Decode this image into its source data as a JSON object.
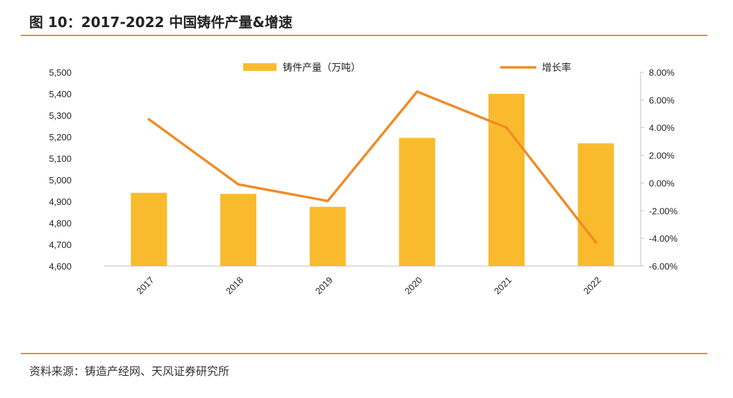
{
  "figure": {
    "title": "图 10：2017-2022 中国铸件产量&增速",
    "source": "资料来源：铸造产经网、天风证券研究所"
  },
  "colors": {
    "bar": "#f9bb2d",
    "line": "#f08a24",
    "accent_rule": "#f08a24"
  },
  "chart_data": {
    "type": "bar",
    "categories": [
      "2017",
      "2018",
      "2019",
      "2020",
      "2021",
      "2022"
    ],
    "series": [
      {
        "name": "铸件产量（万吨）",
        "type": "bar",
        "axis": "left",
        "values": [
          4940,
          4935,
          4875,
          5195,
          5400,
          5170
        ]
      },
      {
        "name": "增长率",
        "type": "line",
        "axis": "right",
        "values": [
          4.6,
          -0.1,
          -1.3,
          6.6,
          4.0,
          -4.3
        ]
      }
    ],
    "y_left": {
      "min": 4600,
      "max": 5500,
      "step": 100,
      "tick_labels": [
        "4,600",
        "4,700",
        "4,800",
        "4,900",
        "5,000",
        "5,100",
        "5,200",
        "5,300",
        "5,400",
        "5,500"
      ]
    },
    "y_right": {
      "min": -6,
      "max": 8,
      "step": 2,
      "tick_labels": [
        "-6.00%",
        "-4.00%",
        "-2.00%",
        "0.00%",
        "2.00%",
        "4.00%",
        "6.00%",
        "8.00%"
      ]
    },
    "grid": false,
    "legend_position": "top"
  }
}
